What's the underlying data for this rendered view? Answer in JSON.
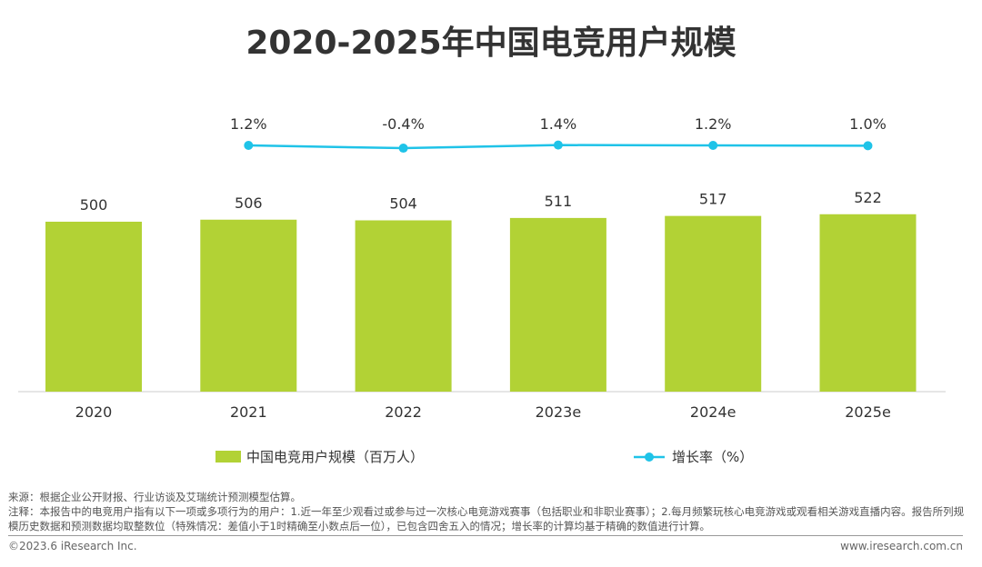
{
  "chart_data": {
    "type": "bar+line",
    "title": "2020-2025年中国电竞用户规模",
    "categories": [
      "2020",
      "2021",
      "2022",
      "2023e",
      "2024e",
      "2025e"
    ],
    "series": [
      {
        "name": "中国电竞用户规模（百万人）",
        "type": "bar",
        "color": "#b2d235",
        "values": [
          500,
          506,
          504,
          511,
          517,
          522
        ],
        "labels": [
          "500",
          "506",
          "504",
          "511",
          "517",
          "522"
        ]
      },
      {
        "name": "增长率（%）",
        "type": "line",
        "color": "#1fc3e8",
        "x": [
          "2021",
          "2022",
          "2023e",
          "2024e",
          "2025e"
        ],
        "values": [
          1.2,
          -0.4,
          1.4,
          1.2,
          1.0
        ],
        "labels": [
          "1.2%",
          "-0.4%",
          "1.4%",
          "1.2%",
          "1.0%"
        ]
      }
    ],
    "grid": false,
    "legend_position": "bottom"
  },
  "notes": {
    "source": "来源：根据企业公开财报、行业访谈及艾瑞统计预测模型估算。",
    "note": "注释：本报告中的电竞用户指有以下一项或多项行为的用户：1.近一年至少观看过或参与过一次核心电竞游戏赛事（包括职业和非职业赛事）；2.每月频繁玩核心电竞游戏或观看相关游戏直播内容。报告所列规模历史数据和预测数据均取整数位（特殊情况：差值小于1时精确至小数点后一位），已包含四舍五入的情况；增长率的计算均基于精确的数值进行计算。"
  },
  "footer": {
    "copyright": "©2023.6 iResearch Inc.",
    "website": "www.iresearch.com.cn"
  }
}
